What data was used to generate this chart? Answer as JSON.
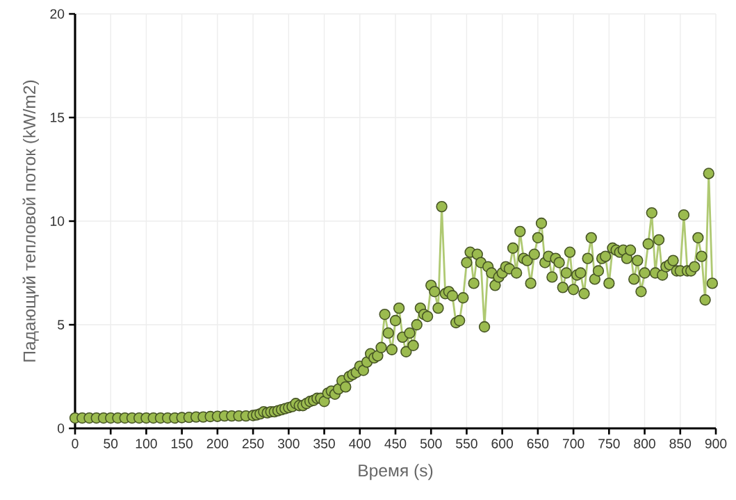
{
  "chart_data": {
    "type": "line",
    "xlabel": "Время (s)",
    "ylabel": "Падающий тепловой поток (kW/m2)",
    "xlim": [
      0,
      900
    ],
    "xticks": [
      0,
      50,
      100,
      150,
      200,
      250,
      300,
      350,
      400,
      450,
      500,
      550,
      600,
      650,
      700,
      750,
      800,
      850,
      900
    ],
    "ylim": [
      0,
      20
    ],
    "yticks": [
      0,
      5,
      10,
      15,
      20
    ],
    "grid": true,
    "marker": "circle",
    "line_style": "solid",
    "series": [
      {
        "color": "#9bbb4f",
        "x": [
          0,
          10,
          20,
          30,
          40,
          50,
          60,
          70,
          80,
          90,
          100,
          110,
          120,
          130,
          140,
          150,
          160,
          170,
          180,
          190,
          200,
          210,
          220,
          230,
          240,
          250,
          255,
          260,
          265,
          270,
          275,
          280,
          285,
          290,
          295,
          300,
          305,
          310,
          315,
          320,
          325,
          330,
          335,
          340,
          345,
          350,
          355,
          360,
          365,
          370,
          375,
          380,
          385,
          390,
          395,
          400,
          405,
          410,
          415,
          420,
          425,
          430,
          435,
          440,
          445,
          450,
          455,
          460,
          465,
          470,
          475,
          480,
          485,
          490,
          495,
          500,
          505,
          510,
          515,
          520,
          525,
          530,
          535,
          540,
          545,
          550,
          555,
          560,
          565,
          570,
          575,
          580,
          585,
          590,
          595,
          600,
          605,
          610,
          615,
          620,
          625,
          630,
          635,
          640,
          645,
          650,
          655,
          660,
          665,
          670,
          675,
          680,
          685,
          690,
          695,
          700,
          705,
          710,
          715,
          720,
          725,
          730,
          735,
          740,
          745,
          750,
          755,
          760,
          765,
          770,
          775,
          780,
          785,
          790,
          795,
          800,
          805,
          810,
          815,
          820,
          825,
          830,
          835,
          840,
          845,
          850,
          855,
          860,
          865,
          870,
          875,
          880,
          885,
          890,
          895
        ],
        "values": [
          0.5,
          0.5,
          0.5,
          0.5,
          0.5,
          0.5,
          0.5,
          0.5,
          0.5,
          0.5,
          0.5,
          0.5,
          0.5,
          0.5,
          0.5,
          0.52,
          0.53,
          0.55,
          0.55,
          0.57,
          0.58,
          0.6,
          0.6,
          0.6,
          0.6,
          0.62,
          0.65,
          0.7,
          0.8,
          0.75,
          0.8,
          0.8,
          0.85,
          0.9,
          0.95,
          1.0,
          1.05,
          1.2,
          1.1,
          1.1,
          1.2,
          1.3,
          1.35,
          1.45,
          1.45,
          1.3,
          1.7,
          1.8,
          1.65,
          1.9,
          2.3,
          2.0,
          2.5,
          2.6,
          2.7,
          3.0,
          2.8,
          3.2,
          3.6,
          3.4,
          3.5,
          3.9,
          5.5,
          4.6,
          3.8,
          5.2,
          5.8,
          4.4,
          3.7,
          4.6,
          4.0,
          5.0,
          5.8,
          5.5,
          5.4,
          6.9,
          6.6,
          5.8,
          10.7,
          6.5,
          6.6,
          6.4,
          5.1,
          5.2,
          6.3,
          8.0,
          8.5,
          7.0,
          8.4,
          8.0,
          4.9,
          7.8,
          7.5,
          6.9,
          7.3,
          7.5,
          7.8,
          7.7,
          8.7,
          7.5,
          9.5,
          8.2,
          8.1,
          7.0,
          8.4,
          9.2,
          9.9,
          8.0,
          8.3,
          7.3,
          8.2,
          8.0,
          6.8,
          7.5,
          8.5,
          6.7,
          7.4,
          7.5,
          6.5,
          8.2,
          9.2,
          7.2,
          7.6,
          8.2,
          8.3,
          7.0,
          8.7,
          8.6,
          8.5,
          8.6,
          8.2,
          8.6,
          7.2,
          8.1,
          6.6,
          7.5,
          8.9,
          10.4,
          7.5,
          9.1,
          7.4,
          7.8,
          7.9,
          8.1,
          7.6,
          7.6,
          10.3,
          7.6,
          7.6,
          7.8,
          9.2,
          8.3,
          6.2,
          12.3,
          7.0
        ]
      }
    ]
  }
}
